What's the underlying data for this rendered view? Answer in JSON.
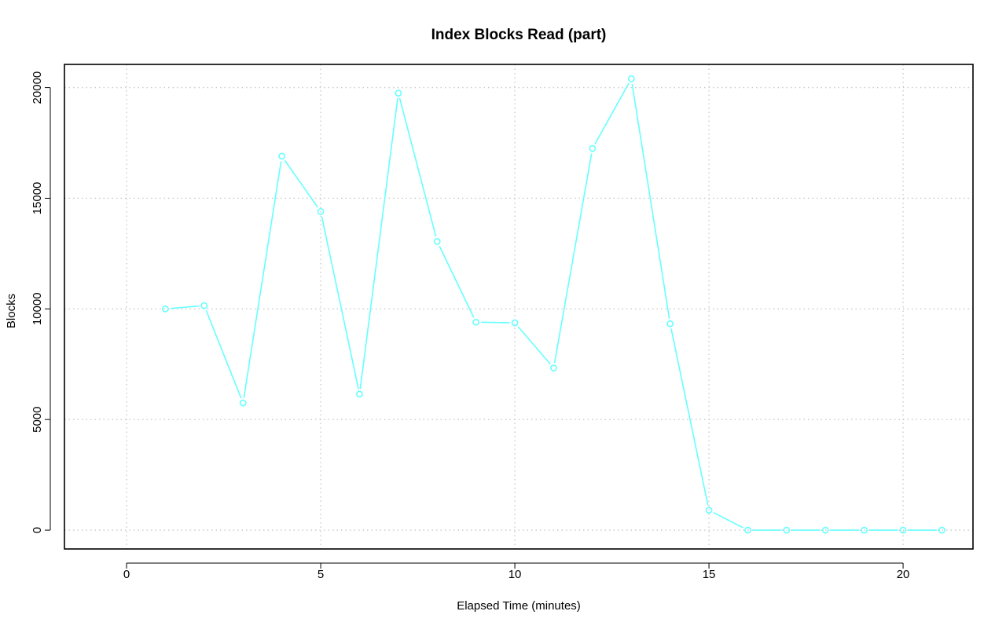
{
  "chart_data": {
    "type": "line",
    "title": "Index Blocks Read (part)",
    "xlabel": "Elapsed Time (minutes)",
    "ylabel": "Blocks",
    "xlim": [
      -1.6,
      21.8
    ],
    "ylim": [
      -850,
      21050
    ],
    "xticks": [
      0,
      5,
      10,
      15,
      20
    ],
    "yticks": [
      0,
      5000,
      10000,
      15000,
      20000
    ],
    "grid": true,
    "markers": "open-circle",
    "series": [
      {
        "color": "#66ffff",
        "x": [
          1,
          2,
          3,
          4,
          5,
          6,
          7,
          8,
          9,
          10,
          11,
          12,
          13,
          14,
          15,
          16,
          17,
          18,
          19,
          20,
          21
        ],
        "values": [
          10000,
          10150,
          5750,
          16900,
          14400,
          6150,
          19750,
          13050,
          9400,
          9370,
          7330,
          17250,
          20400,
          9330,
          900,
          0,
          0,
          0,
          0,
          0,
          0
        ]
      }
    ]
  }
}
